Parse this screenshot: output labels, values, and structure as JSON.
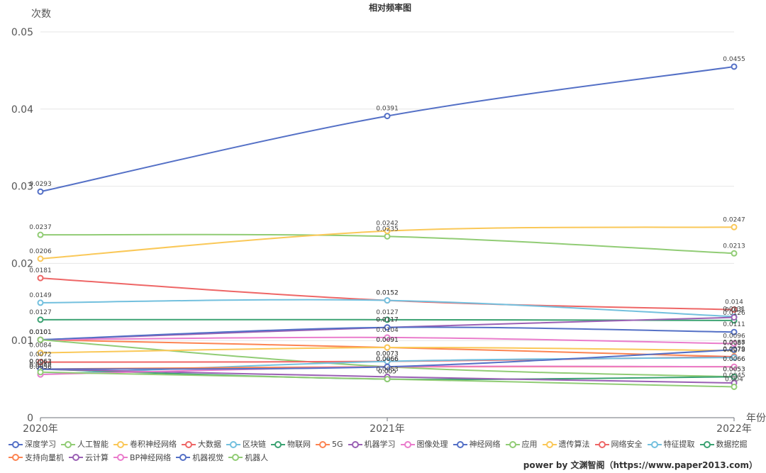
{
  "credit": "power by 文渊智阁（https://www.paper2013.com）",
  "chart_data": {
    "type": "line",
    "title": "相对频率图",
    "xlabel": "年份",
    "ylabel": "次数",
    "categories": [
      "2020年",
      "2021年",
      "2022年"
    ],
    "ylim": [
      0,
      0.05
    ],
    "yticks": [
      "0",
      "0.01",
      "0.02",
      "0.03",
      "0.04",
      "0.05"
    ],
    "legend_position": "bottom",
    "series": [
      {
        "name": "深度学习",
        "color": "#5470c6",
        "values": [
          0.0293,
          0.0391,
          0.0455
        ]
      },
      {
        "name": "人工智能",
        "color": "#91cc75",
        "values": [
          0.0237,
          0.0235,
          0.0213
        ]
      },
      {
        "name": "卷积神经网络",
        "color": "#fac858",
        "values": [
          0.0206,
          0.0242,
          0.0247
        ]
      },
      {
        "name": "大数据",
        "color": "#ee6666",
        "values": [
          0.0181,
          0.0152,
          0.014
        ]
      },
      {
        "name": "区块链",
        "color": "#73c0de",
        "values": [
          0.0149,
          0.0152,
          0.0131
        ]
      },
      {
        "name": "物联网",
        "color": "#3ba272",
        "values": [
          0.0127,
          0.0127,
          0.0126
        ]
      },
      {
        "name": "5G",
        "color": "#fc8452",
        "values": [
          0.0101,
          0.0091,
          0.0079
        ]
      },
      {
        "name": "机器学习",
        "color": "#9a60b4",
        "values": [
          0.0101,
          0.0117,
          0.013
        ]
      },
      {
        "name": "图像处理",
        "color": "#ea7ccc",
        "values": [
          0.0101,
          0.0104,
          0.0096
        ]
      },
      {
        "name": "神经网络",
        "color": "#5470c6",
        "values": [
          0.0101,
          0.0117,
          0.0111
        ]
      },
      {
        "name": "应用",
        "color": "#91cc75",
        "values": [
          0.0101,
          0.0066,
          0.0053
        ]
      },
      {
        "name": "遗传算法",
        "color": "#fac858",
        "values": [
          0.0084,
          0.0091,
          0.0087
        ]
      },
      {
        "name": "网络安全",
        "color": "#ee6666",
        "values": [
          0.0072,
          0.0073,
          0.0079
        ]
      },
      {
        "name": "特征提取",
        "color": "#73c0de",
        "values": [
          0.0056,
          0.0073,
          0.0078
        ]
      },
      {
        "name": "数据挖掘",
        "color": "#3ba272",
        "values": [
          0.0063,
          0.005,
          0.0053
        ]
      },
      {
        "name": "支持向量机",
        "color": "#fc8452",
        "values": [
          0.0063,
          0.0066,
          0.0066
        ]
      },
      {
        "name": "云计算",
        "color": "#9a60b4",
        "values": [
          0.0063,
          0.0053,
          0.0045
        ]
      },
      {
        "name": "BP神经网络",
        "color": "#ea7ccc",
        "values": [
          0.0056,
          0.0066,
          0.0066
        ]
      },
      {
        "name": "机器视觉",
        "color": "#5470c6",
        "values": [
          0.0063,
          0.0066,
          0.0088
        ]
      },
      {
        "name": "机器人",
        "color": "#91cc75",
        "values": [
          0.0059,
          0.005,
          0.004
        ]
      }
    ]
  }
}
